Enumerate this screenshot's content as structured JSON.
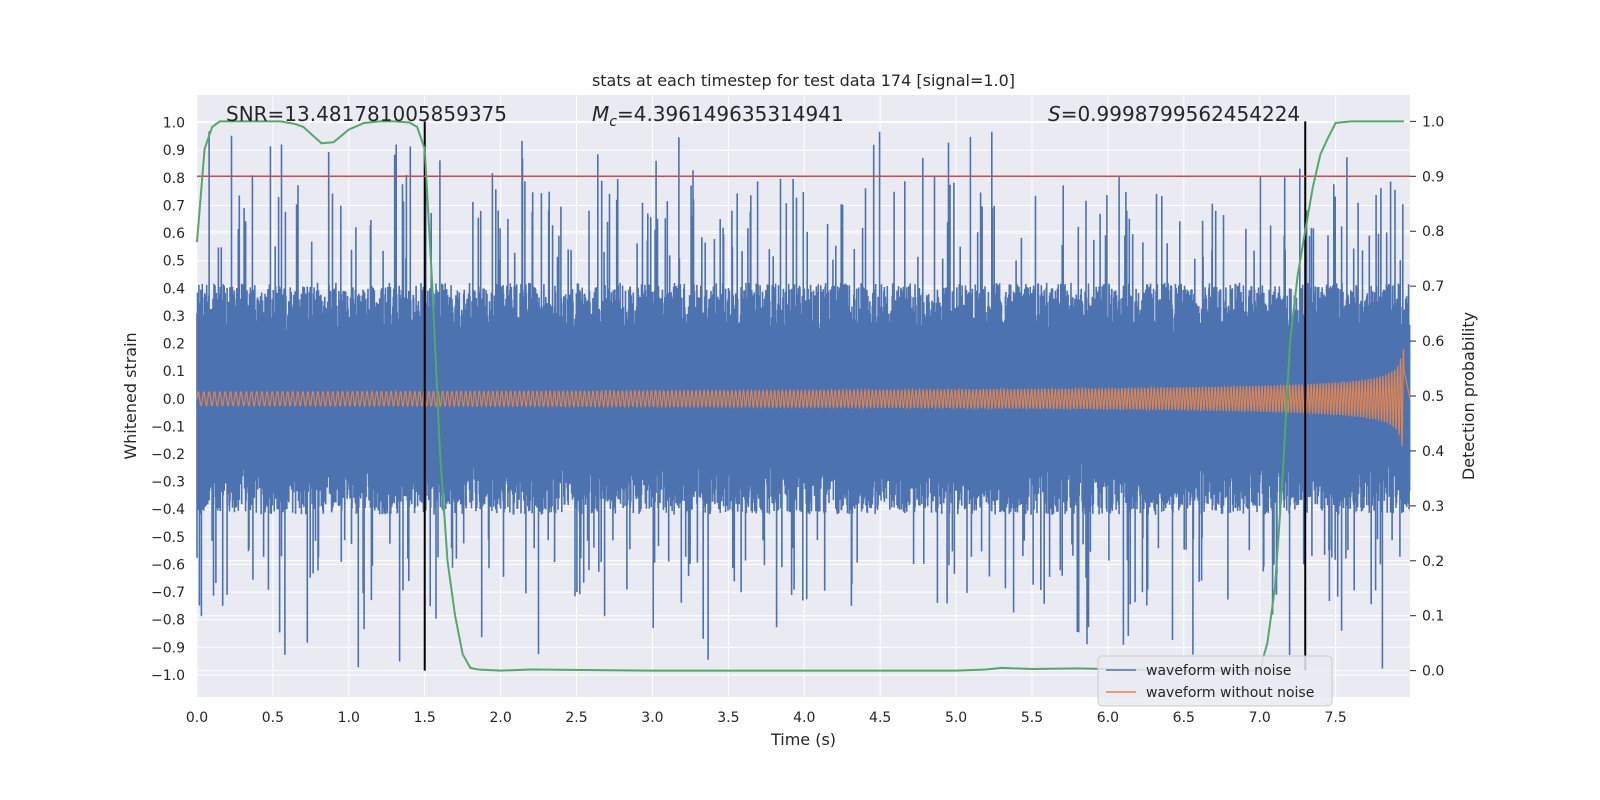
{
  "chart_data": {
    "type": "line",
    "title": "stats at each timestep for test data 174 [signal=1.0]",
    "xlabel": "Time (s)",
    "ylabel_left": "Whitened strain",
    "ylabel_right": "Detection probability",
    "xlim": [
      0.0,
      7.99
    ],
    "ylim_left": [
      -1.08,
      1.1
    ],
    "ylim_right": [
      -0.048,
      1.048
    ],
    "xticks": [
      "0.0",
      "0.5",
      "1.0",
      "1.5",
      "2.0",
      "2.5",
      "3.0",
      "3.5",
      "4.0",
      "4.5",
      "5.0",
      "5.5",
      "6.0",
      "6.5",
      "7.0",
      "7.5"
    ],
    "yticks_left": [
      "−1.0",
      "−0.9",
      "−0.8",
      "−0.7",
      "−0.6",
      "−0.5",
      "−0.4",
      "−0.3",
      "−0.2",
      "−0.1",
      "0.0",
      "0.1",
      "0.2",
      "0.3",
      "0.4",
      "0.5",
      "0.6",
      "0.7",
      "0.8",
      "0.9",
      "1.0"
    ],
    "yticks_right": [
      "0.0",
      "0.1",
      "0.2",
      "0.3",
      "0.4",
      "0.5",
      "0.6",
      "0.7",
      "0.8",
      "0.9",
      "1.0"
    ],
    "annotations": {
      "snr": "SNR=13.481781005859375",
      "mc_symbol": "M",
      "mc_sub": "c",
      "mc_value": "=4.396149635314941",
      "s_symbol": "S",
      "s_value": "=0.9998799562454224"
    },
    "threshold_right": 0.9,
    "vertical_markers": [
      1.5,
      7.3
    ],
    "series": [
      {
        "name": "waveform with noise",
        "color": "#4c72b0",
        "kind": "noise",
        "typical_amplitude": 0.42,
        "max_spike": 0.97,
        "min_spike": -0.98
      },
      {
        "name": "waveform without noise",
        "color": "#dd8452",
        "kind": "chirp",
        "start_amplitude": 0.025,
        "end_amplitude": 0.37,
        "end_time": 7.95
      },
      {
        "name": "Detection probability",
        "color": "#55a868",
        "axis": "right",
        "x": [
          0.0,
          0.05,
          0.1,
          0.15,
          0.25,
          0.4,
          0.55,
          0.65,
          0.7,
          0.8,
          0.82,
          0.9,
          1.0,
          1.1,
          1.2,
          1.3,
          1.4,
          1.45,
          1.5,
          1.55,
          1.6,
          1.65,
          1.7,
          1.75,
          1.8,
          1.85,
          2.0,
          2.2,
          3.0,
          4.0,
          5.0,
          5.2,
          5.3,
          5.5,
          5.8,
          6.1,
          6.5,
          6.9,
          7.0,
          7.05,
          7.1,
          7.15,
          7.2,
          7.25,
          7.3,
          7.35,
          7.4,
          7.45,
          7.5,
          7.6,
          7.7,
          7.8,
          7.95
        ],
        "y": [
          0.78,
          0.95,
          0.99,
          1.0,
          1.0,
          1.0,
          1.0,
          0.995,
          0.99,
          0.965,
          0.96,
          0.962,
          0.985,
          0.997,
          1.0,
          1.0,
          0.998,
          0.99,
          0.95,
          0.7,
          0.4,
          0.2,
          0.1,
          0.03,
          0.005,
          0.002,
          0.0,
          0.002,
          0.0,
          0.0,
          0.0,
          0.002,
          0.005,
          0.003,
          0.004,
          0.002,
          0.0,
          0.0,
          0.0,
          0.05,
          0.15,
          0.35,
          0.6,
          0.72,
          0.8,
          0.88,
          0.94,
          0.97,
          0.997,
          1.0,
          1.0,
          1.0,
          1.0
        ]
      }
    ],
    "legend": {
      "placement": "lower-right",
      "entries": [
        "waveform with noise",
        "waveform without noise"
      ]
    },
    "grid": true,
    "background": "#eaeaf2",
    "threshold_color": "#c44e52"
  }
}
